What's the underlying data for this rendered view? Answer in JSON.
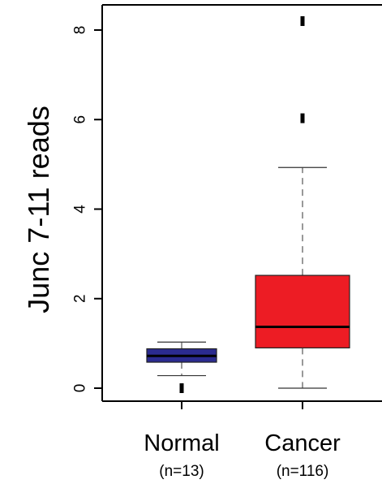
{
  "chart_data": {
    "type": "boxplot",
    "ylabel": "Junc 7-11 reads",
    "ylim": [
      -0.3,
      8.4
    ],
    "yticks": [
      0,
      2,
      4,
      6,
      8
    ],
    "grid": false,
    "legend": "none",
    "series": [
      {
        "category": "Normal",
        "n_label": "(n=13)",
        "color": "#2b2b8f",
        "whisker_low": 0.28,
        "q1": 0.58,
        "median": 0.72,
        "q3": 0.88,
        "whisker_high": 1.03,
        "outliers": [
          0.0
        ]
      },
      {
        "category": "Cancer",
        "n_label": "(n=116)",
        "color": "#ed1c24",
        "whisker_low": 0.0,
        "q1": 0.9,
        "median": 1.37,
        "q3": 2.52,
        "whisker_high": 4.93,
        "outliers": [
          6.03,
          8.2
        ]
      }
    ]
  }
}
